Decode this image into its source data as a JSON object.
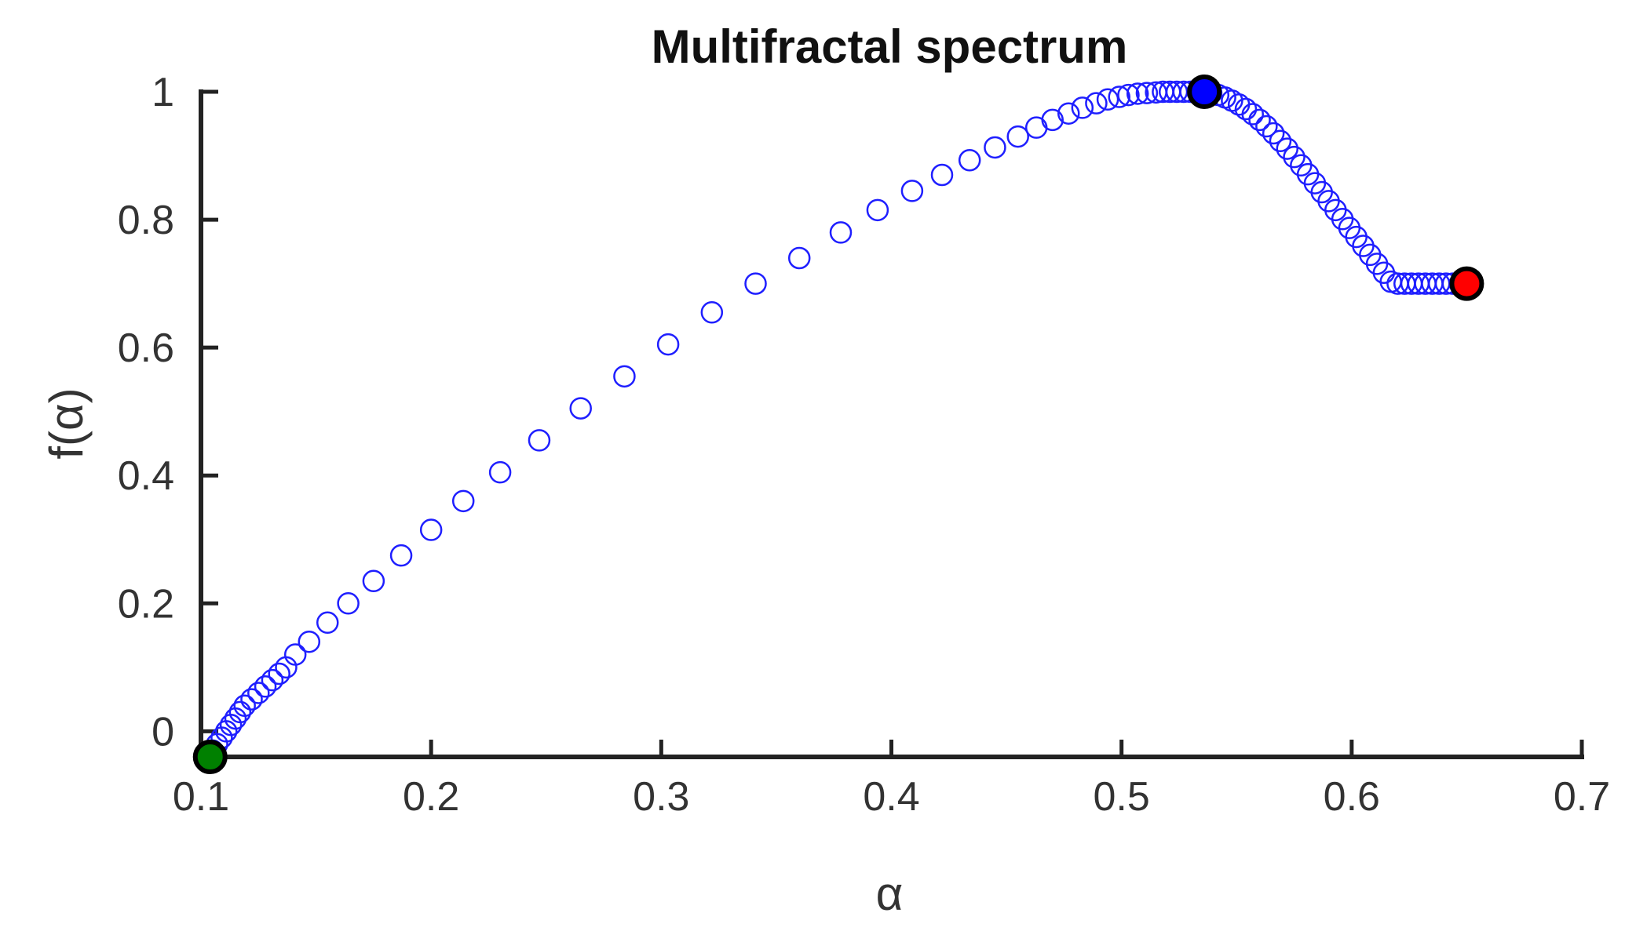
{
  "chart_data": {
    "type": "scatter",
    "title": "Multifractal spectrum",
    "xlabel": "α",
    "ylabel": "f(α)",
    "xlim": [
      0.1,
      0.7
    ],
    "ylim": [
      -0.04,
      1.0
    ],
    "xticks": [
      {
        "value": 0.1,
        "label": "0.1"
      },
      {
        "value": 0.2,
        "label": "0.2"
      },
      {
        "value": 0.3,
        "label": "0.3"
      },
      {
        "value": 0.4,
        "label": "0.4"
      },
      {
        "value": 0.5,
        "label": "0.5"
      },
      {
        "value": 0.6,
        "label": "0.6"
      },
      {
        "value": 0.7,
        "label": "0.7"
      }
    ],
    "yticks": [
      {
        "value": 0.0,
        "label": "0"
      },
      {
        "value": 0.2,
        "label": "0.2"
      },
      {
        "value": 0.4,
        "label": "0.4"
      },
      {
        "value": 0.6,
        "label": "0.6"
      },
      {
        "value": 0.8,
        "label": "0.8"
      },
      {
        "value": 1.0,
        "label": "1"
      }
    ],
    "grid": false,
    "legend": "none",
    "colors": {
      "spectrum": "#1f1fff",
      "marker_edge": "#000000",
      "peak": "#0000ff",
      "right_end": "#ff0000",
      "left_end": "#008000"
    },
    "series": [
      {
        "marker": "open-circle",
        "color": "#1f1fff",
        "x": [
          0.105,
          0.107,
          0.109,
          0.111,
          0.113,
          0.115,
          0.117,
          0.119,
          0.122,
          0.125,
          0.128,
          0.131,
          0.134,
          0.137,
          0.141,
          0.147,
          0.155,
          0.164,
          0.175,
          0.187,
          0.2,
          0.214,
          0.23,
          0.247,
          0.265,
          0.284,
          0.303,
          0.322,
          0.341,
          0.36,
          0.378,
          0.394,
          0.409,
          0.422,
          0.434,
          0.445,
          0.455,
          0.463,
          0.47,
          0.477,
          0.483,
          0.489,
          0.494,
          0.499,
          0.503,
          0.507,
          0.511,
          0.515,
          0.518,
          0.521,
          0.524,
          0.527,
          0.53,
          0.533,
          0.536,
          0.539,
          0.542,
          0.545,
          0.548,
          0.551,
          0.554,
          0.557,
          0.56,
          0.563,
          0.566,
          0.569,
          0.572,
          0.575,
          0.578,
          0.581,
          0.584,
          0.587,
          0.59,
          0.593,
          0.596,
          0.599,
          0.602,
          0.605,
          0.608,
          0.611,
          0.614,
          0.617,
          0.62,
          0.623,
          0.626,
          0.629,
          0.632,
          0.635,
          0.638,
          0.641,
          0.644,
          0.647,
          0.65
        ],
        "y": [
          -0.03,
          -0.02,
          -0.01,
          0.0,
          0.01,
          0.02,
          0.03,
          0.04,
          0.05,
          0.06,
          0.07,
          0.08,
          0.09,
          0.1,
          0.12,
          0.14,
          0.17,
          0.2,
          0.235,
          0.275,
          0.315,
          0.36,
          0.405,
          0.455,
          0.505,
          0.555,
          0.605,
          0.655,
          0.7,
          0.74,
          0.78,
          0.815,
          0.845,
          0.87,
          0.893,
          0.913,
          0.93,
          0.944,
          0.956,
          0.966,
          0.975,
          0.982,
          0.988,
          0.992,
          0.995,
          0.997,
          0.998,
          0.999,
          1.0,
          1.0,
          1.0,
          1.0,
          1.0,
          1.0,
          1.0,
          0.998,
          0.995,
          0.991,
          0.986,
          0.98,
          0.973,
          0.965,
          0.956,
          0.946,
          0.935,
          0.923,
          0.911,
          0.898,
          0.885,
          0.871,
          0.857,
          0.843,
          0.829,
          0.815,
          0.801,
          0.787,
          0.773,
          0.759,
          0.745,
          0.731,
          0.717,
          0.703,
          0.7,
          0.7,
          0.7,
          0.7,
          0.7,
          0.7,
          0.7,
          0.7,
          0.7,
          0.7,
          0.7
        ]
      },
      {
        "marker": "filled-circle",
        "color": "#0000ff",
        "x": [
          0.536
        ],
        "y": [
          1.0
        ]
      },
      {
        "marker": "filled-circle",
        "color": "#ff0000",
        "x": [
          0.65
        ],
        "y": [
          0.7
        ]
      },
      {
        "marker": "filled-circle",
        "color": "#008000",
        "x": [
          0.104
        ],
        "y": [
          -0.04
        ]
      }
    ]
  }
}
